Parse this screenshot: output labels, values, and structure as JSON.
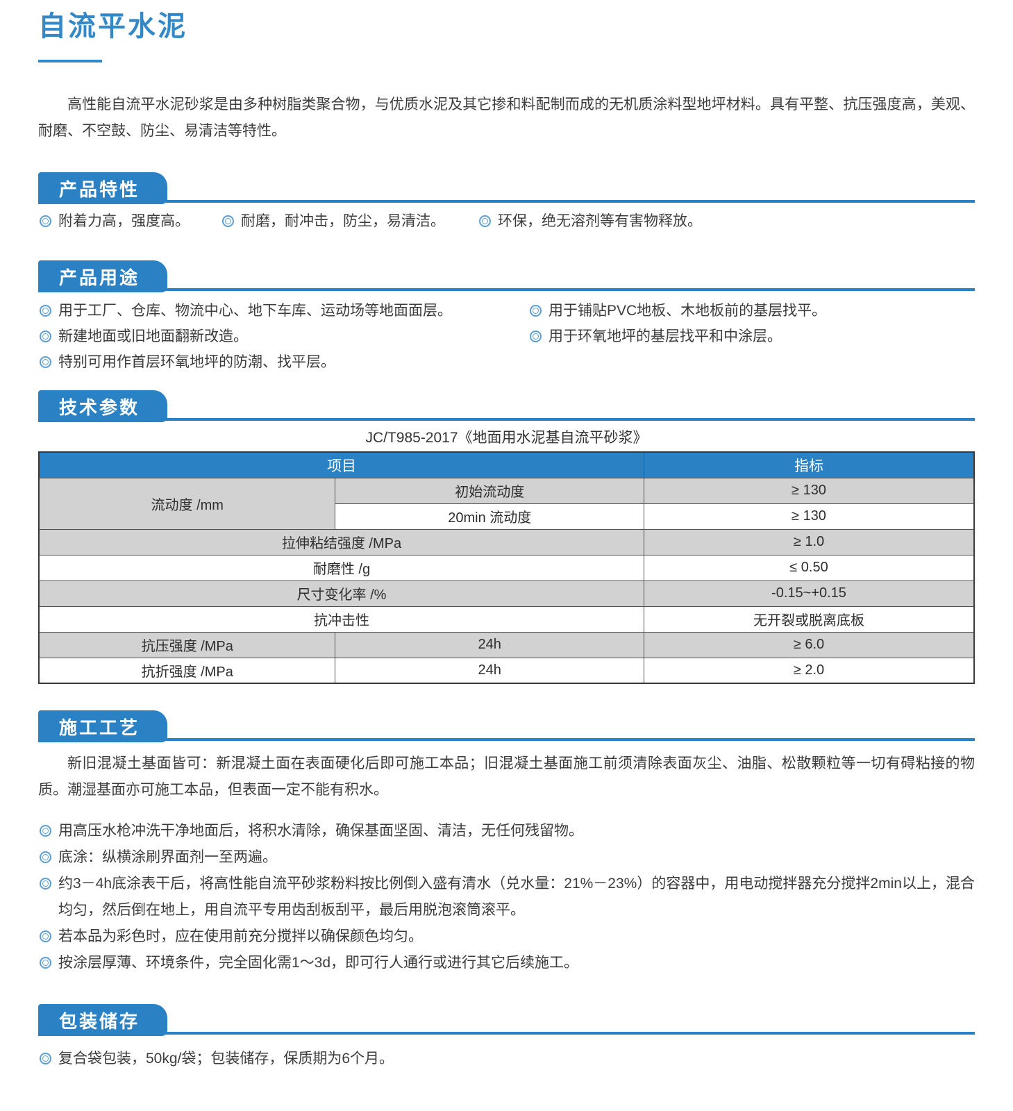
{
  "page": {
    "title": "自流平水泥",
    "intro": "高性能自流平水泥砂浆是由多种树脂类聚合物，与优质水泥及其它掺和料配制而成的无机质涂料型地坪材料。具有平整、抗压强度高，美观、耐磨、不空鼓、防尘、易清洁等特性。"
  },
  "features": {
    "heading": "产品特性",
    "items": [
      "附着力高，强度高。",
      "耐磨，耐冲击，防尘，易清洁。",
      "环保，绝无溶剂等有害物释放。"
    ]
  },
  "uses": {
    "heading": "产品用途",
    "left": [
      "用于工厂、仓库、物流中心、地下车库、运动场等地面面层。",
      "新建地面或旧地面翻新改造。",
      "特别可用作首层环氧地坪的防潮、找平层。"
    ],
    "right": [
      "用于铺贴PVC地板、木地板前的基层找平。",
      "用于环氧地坪的基层找平和中涂层。"
    ]
  },
  "tech": {
    "heading": "技术参数",
    "standard": "JC/T985-2017《地面用水泥基自流平砂浆》",
    "table": {
      "header": {
        "item": "项目",
        "index": "指标"
      },
      "rows": [
        {
          "c1": "流动度 /mm",
          "c2": "初始流动度",
          "v": "≥ 130"
        },
        {
          "c2": "20min 流动度",
          "v": "≥ 130"
        },
        {
          "c12": "拉伸粘结强度 /MPa",
          "v": "≥ 1.0"
        },
        {
          "c12": "耐磨性 /g",
          "v": "≤ 0.50"
        },
        {
          "c12": "尺寸变化率 /%",
          "v": "-0.15~+0.15"
        },
        {
          "c12": "抗冲击性",
          "v": "无开裂或脱离底板"
        },
        {
          "c1": "抗压强度 /MPa",
          "c2": "24h",
          "v": "≥ 6.0"
        },
        {
          "c1": "抗折强度 /MPa",
          "c2": "24h",
          "v": "≥ 2.0"
        }
      ]
    }
  },
  "process": {
    "heading": "施工工艺",
    "intro": "新旧混凝土基面皆可：新混凝土面在表面硬化后即可施工本品；旧混凝土基面施工前须清除表面灰尘、油脂、松散颗粒等一切有碍粘接的物质。潮湿基面亦可施工本品，但表面一定不能有积水。",
    "items": [
      "用高压水枪冲洗干净地面后，将积水清除，确保基面坚固、清洁，无任何残留物。",
      "底涂：纵横涂刷界面剂一至两遍。",
      "约3－4h底涂表干后，将高性能自流平砂浆粉料按比例倒入盛有清水（兑水量：21%－23%）的容器中，用电动搅拌器充分搅拌2min以上，混合均匀，然后倒在地上，用自流平专用齿刮板刮平，最后用脱泡滚筒滚平。",
      "若本品为彩色时，应在使用前充分搅拌以确保颜色均匀。",
      "按涂层厚薄、环境条件，完全固化需1～3d，即可行人通行或进行其它后续施工。"
    ]
  },
  "packaging": {
    "heading": "包装储存",
    "items": [
      "复合袋包装，50kg/袋；包装储存，保质期为6个月。"
    ]
  },
  "colors": {
    "accent": "#2A82C5",
    "title_blue": "#3388C8",
    "bullet_blue": "#5C9FD5",
    "table_gray": "#D2D2D2"
  }
}
